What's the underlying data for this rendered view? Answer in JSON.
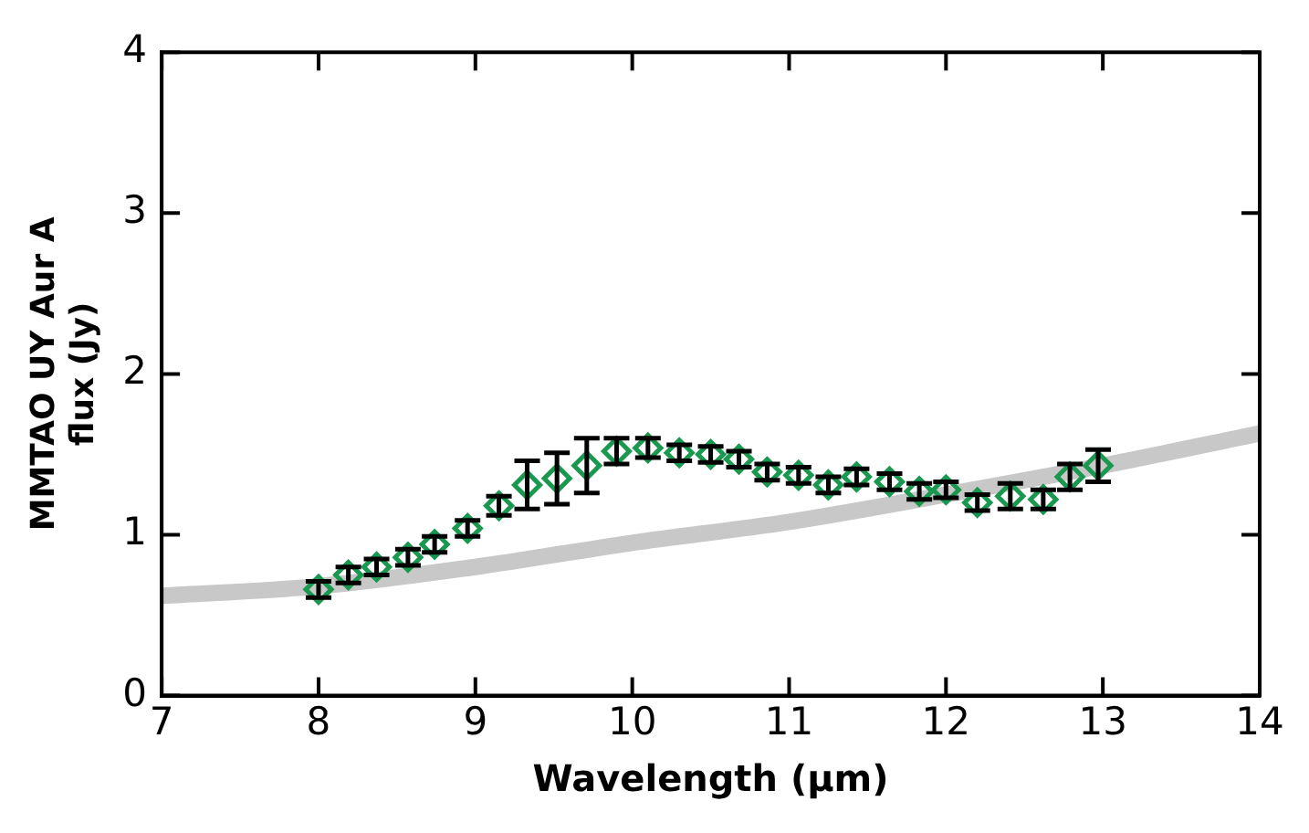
{
  "chart_data": {
    "type": "scatter",
    "xlabel": "Wavelength (μm)",
    "ylabel": "MMTAO UY Aur A\nflux (Jy)",
    "xlim": [
      7,
      14
    ],
    "xticks": [
      7,
      8,
      9,
      10,
      11,
      12,
      13,
      14
    ],
    "ylim": [
      0,
      4
    ],
    "yticks": [
      0,
      1,
      2,
      3,
      4
    ],
    "grid": false,
    "legend": false,
    "series": [
      {
        "type": "line",
        "color": "#c8c8c8",
        "marker": "none",
        "x": [
          7,
          8,
          9,
          10,
          11,
          12,
          13,
          14
        ],
        "values": [
          0.62,
          0.68,
          0.8,
          0.95,
          1.08,
          1.25,
          1.43,
          1.63
        ]
      },
      {
        "color": "#1a9850",
        "marker": "diamond",
        "x": [
          8.0,
          8.19,
          8.37,
          8.57,
          8.74,
          8.95,
          9.15,
          9.33,
          9.52,
          9.71,
          9.9,
          10.1,
          10.3,
          10.5,
          10.68,
          10.86,
          11.06,
          11.25,
          11.43,
          11.64,
          11.83,
          12.0,
          12.2,
          12.41,
          12.62,
          12.79,
          12.97
        ],
        "values": [
          0.66,
          0.75,
          0.8,
          0.86,
          0.94,
          1.04,
          1.18,
          1.31,
          1.35,
          1.43,
          1.52,
          1.54,
          1.51,
          1.5,
          1.47,
          1.39,
          1.37,
          1.31,
          1.36,
          1.33,
          1.27,
          1.28,
          1.2,
          1.24,
          1.22,
          1.36,
          1.43
        ],
        "errors": [
          0.05,
          0.05,
          0.05,
          0.05,
          0.05,
          0.05,
          0.06,
          0.15,
          0.16,
          0.17,
          0.08,
          0.06,
          0.05,
          0.05,
          0.05,
          0.05,
          0.05,
          0.05,
          0.05,
          0.05,
          0.05,
          0.05,
          0.05,
          0.08,
          0.06,
          0.08,
          0.1
        ]
      }
    ]
  }
}
